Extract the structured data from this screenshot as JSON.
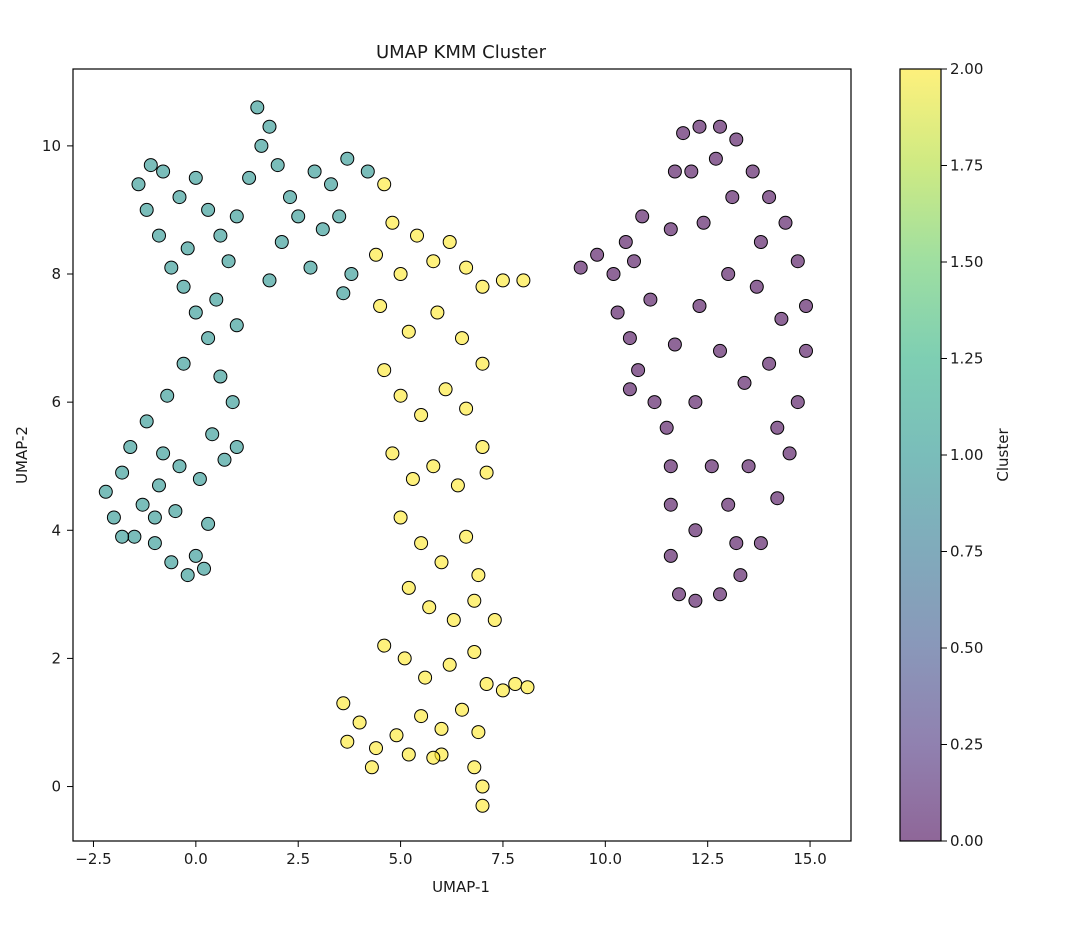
{
  "chart_data": {
    "type": "scatter",
    "title": "UMAP KMM Cluster",
    "xlabel": "UMAP-1",
    "ylabel": "UMAP-2",
    "xlim": [
      -3.0,
      16.0
    ],
    "ylim": [
      -0.85,
      11.2
    ],
    "xticks": [
      -2.5,
      0.0,
      2.5,
      5.0,
      7.5,
      10.0,
      12.5,
      15.0
    ],
    "xtick_labels": [
      "−2.5",
      "0.0",
      "2.5",
      "5.0",
      "7.5",
      "10.0",
      "12.5",
      "15.0"
    ],
    "yticks": [
      0,
      2,
      4,
      6,
      8,
      10
    ],
    "ytick_labels": [
      "0",
      "2",
      "4",
      "6",
      "8",
      "10"
    ],
    "grid": false,
    "colormap": "viridis",
    "point_alpha": 0.6,
    "point_edgecolor": "#000000",
    "colorbar": {
      "label": "Cluster",
      "min": 0.0,
      "max": 2.0,
      "ticks": [
        0.0,
        0.25,
        0.5,
        0.75,
        1.0,
        1.25,
        1.5,
        1.75,
        2.0
      ],
      "tick_labels": [
        "0.00",
        "0.25",
        "0.50",
        "0.75",
        "1.00",
        "1.25",
        "1.50",
        "1.75",
        "2.00"
      ]
    },
    "series": [
      {
        "cluster": 1,
        "color": "#21918c",
        "points": [
          [
            -2.2,
            4.6
          ],
          [
            -2.0,
            4.2
          ],
          [
            -1.8,
            4.9
          ],
          [
            -1.6,
            5.3
          ],
          [
            -1.5,
            3.9
          ],
          [
            -1.3,
            4.4
          ],
          [
            -1.2,
            5.7
          ],
          [
            -1.0,
            3.8
          ],
          [
            -0.9,
            4.7
          ],
          [
            -0.8,
            5.2
          ],
          [
            -0.7,
            6.1
          ],
          [
            -0.6,
            3.5
          ],
          [
            -0.5,
            4.3
          ],
          [
            -0.4,
            5.0
          ],
          [
            -0.3,
            6.6
          ],
          [
            -0.2,
            3.3
          ],
          [
            0.0,
            3.6
          ],
          [
            0.2,
            3.4
          ],
          [
            0.3,
            4.1
          ],
          [
            0.1,
            4.8
          ],
          [
            0.4,
            5.5
          ],
          [
            0.7,
            5.1
          ],
          [
            1.0,
            5.3
          ],
          [
            0.9,
            6.0
          ],
          [
            0.6,
            6.4
          ],
          [
            0.3,
            7.0
          ],
          [
            0.0,
            7.4
          ],
          [
            -0.3,
            7.8
          ],
          [
            0.5,
            7.6
          ],
          [
            1.0,
            7.2
          ],
          [
            -0.6,
            8.1
          ],
          [
            -0.9,
            8.6
          ],
          [
            -1.2,
            9.0
          ],
          [
            -1.4,
            9.4
          ],
          [
            -1.1,
            9.7
          ],
          [
            -0.8,
            9.6
          ],
          [
            -0.4,
            9.2
          ],
          [
            0.0,
            9.5
          ],
          [
            0.3,
            9.0
          ],
          [
            0.6,
            8.6
          ],
          [
            1.0,
            8.9
          ],
          [
            1.3,
            9.5
          ],
          [
            1.6,
            10.0
          ],
          [
            1.5,
            10.6
          ],
          [
            1.8,
            10.3
          ],
          [
            2.0,
            9.7
          ],
          [
            2.3,
            9.2
          ],
          [
            2.1,
            8.5
          ],
          [
            2.5,
            8.9
          ],
          [
            2.9,
            9.6
          ],
          [
            3.3,
            9.4
          ],
          [
            3.7,
            9.8
          ],
          [
            4.2,
            9.6
          ],
          [
            2.8,
            8.1
          ],
          [
            3.1,
            8.7
          ],
          [
            3.5,
            8.9
          ],
          [
            3.8,
            8.0
          ],
          [
            3.6,
            7.7
          ],
          [
            0.8,
            8.2
          ],
          [
            -0.2,
            8.4
          ],
          [
            1.8,
            7.9
          ],
          [
            -1.0,
            4.2
          ],
          [
            -1.8,
            3.9
          ]
        ]
      },
      {
        "cluster": 2,
        "color": "#fde725",
        "points": [
          [
            4.6,
            9.4
          ],
          [
            4.8,
            8.8
          ],
          [
            4.4,
            8.3
          ],
          [
            5.0,
            8.0
          ],
          [
            5.4,
            8.6
          ],
          [
            5.8,
            8.2
          ],
          [
            6.2,
            8.5
          ],
          [
            6.6,
            8.1
          ],
          [
            7.0,
            7.8
          ],
          [
            7.5,
            7.9
          ],
          [
            8.0,
            7.9
          ],
          [
            4.5,
            7.5
          ],
          [
            5.2,
            7.1
          ],
          [
            5.9,
            7.4
          ],
          [
            6.5,
            7.0
          ],
          [
            7.0,
            6.6
          ],
          [
            4.6,
            6.5
          ],
          [
            5.0,
            6.1
          ],
          [
            5.5,
            5.8
          ],
          [
            6.1,
            6.2
          ],
          [
            6.6,
            5.9
          ],
          [
            7.0,
            5.3
          ],
          [
            4.8,
            5.2
          ],
          [
            5.3,
            4.8
          ],
          [
            5.8,
            5.0
          ],
          [
            6.4,
            4.7
          ],
          [
            7.1,
            4.9
          ],
          [
            5.0,
            4.2
          ],
          [
            5.5,
            3.8
          ],
          [
            6.0,
            3.5
          ],
          [
            6.6,
            3.9
          ],
          [
            6.9,
            3.3
          ],
          [
            5.2,
            3.1
          ],
          [
            5.7,
            2.8
          ],
          [
            6.3,
            2.6
          ],
          [
            6.8,
            2.9
          ],
          [
            7.3,
            2.6
          ],
          [
            4.6,
            2.2
          ],
          [
            5.1,
            2.0
          ],
          [
            5.6,
            1.7
          ],
          [
            6.2,
            1.9
          ],
          [
            6.8,
            2.1
          ],
          [
            7.1,
            1.6
          ],
          [
            3.6,
            1.3
          ],
          [
            4.0,
            1.0
          ],
          [
            4.4,
            0.6
          ],
          [
            4.9,
            0.8
          ],
          [
            5.5,
            1.1
          ],
          [
            6.0,
            0.9
          ],
          [
            6.5,
            1.2
          ],
          [
            3.7,
            0.7
          ],
          [
            4.3,
            0.3
          ],
          [
            5.2,
            0.5
          ],
          [
            6.0,
            0.5
          ],
          [
            6.8,
            0.3
          ],
          [
            7.0,
            0.0
          ],
          [
            7.0,
            -0.3
          ],
          [
            7.8,
            1.6
          ],
          [
            8.1,
            1.55
          ],
          [
            7.5,
            1.5
          ],
          [
            6.9,
            0.85
          ],
          [
            5.8,
            0.45
          ]
        ]
      },
      {
        "cluster": 0,
        "color": "#440154",
        "points": [
          [
            9.4,
            8.1
          ],
          [
            9.8,
            8.3
          ],
          [
            10.2,
            8.0
          ],
          [
            10.5,
            8.5
          ],
          [
            10.9,
            8.9
          ],
          [
            10.7,
            8.2
          ],
          [
            10.3,
            7.4
          ],
          [
            10.6,
            7.0
          ],
          [
            10.8,
            6.5
          ],
          [
            10.6,
            6.2
          ],
          [
            11.1,
            7.6
          ],
          [
            11.2,
            6.0
          ],
          [
            11.5,
            5.6
          ],
          [
            11.7,
            6.9
          ],
          [
            11.6,
            8.7
          ],
          [
            11.7,
            9.6
          ],
          [
            11.9,
            10.2
          ],
          [
            12.3,
            10.3
          ],
          [
            12.8,
            10.3
          ],
          [
            13.2,
            10.1
          ],
          [
            13.6,
            9.6
          ],
          [
            14.0,
            9.2
          ],
          [
            14.4,
            8.8
          ],
          [
            14.7,
            8.2
          ],
          [
            14.9,
            7.5
          ],
          [
            14.9,
            6.8
          ],
          [
            14.7,
            6.0
          ],
          [
            14.5,
            5.2
          ],
          [
            14.2,
            4.5
          ],
          [
            13.8,
            3.8
          ],
          [
            13.3,
            3.3
          ],
          [
            12.8,
            3.0
          ],
          [
            12.2,
            2.9
          ],
          [
            11.8,
            3.0
          ],
          [
            11.6,
            3.6
          ],
          [
            11.6,
            4.4
          ],
          [
            11.6,
            5.0
          ],
          [
            12.2,
            4.0
          ],
          [
            12.6,
            5.0
          ],
          [
            13.0,
            4.4
          ],
          [
            13.5,
            5.0
          ],
          [
            12.2,
            6.0
          ],
          [
            12.8,
            6.8
          ],
          [
            13.4,
            6.3
          ],
          [
            14.0,
            6.6
          ],
          [
            12.3,
            7.5
          ],
          [
            13.0,
            8.0
          ],
          [
            13.7,
            7.8
          ],
          [
            14.3,
            7.3
          ],
          [
            12.4,
            8.8
          ],
          [
            13.1,
            9.2
          ],
          [
            13.8,
            8.5
          ],
          [
            12.1,
            9.6
          ],
          [
            12.7,
            9.8
          ],
          [
            14.2,
            5.6
          ],
          [
            13.2,
            3.8
          ]
        ]
      }
    ]
  }
}
